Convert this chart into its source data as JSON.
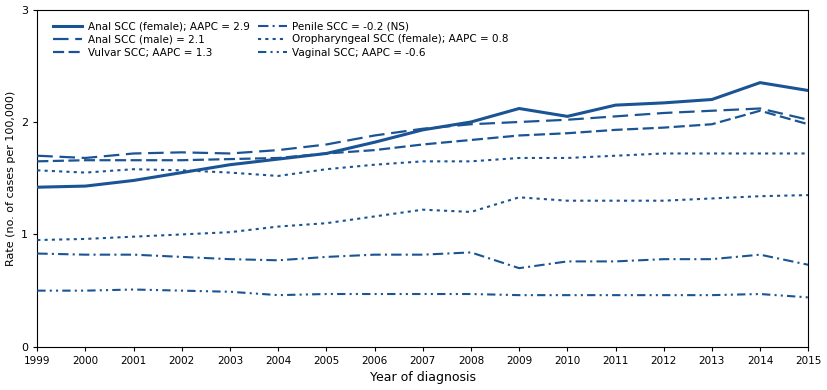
{
  "years": [
    1999,
    2000,
    2001,
    2002,
    2003,
    2004,
    2005,
    2006,
    2007,
    2008,
    2009,
    2010,
    2011,
    2012,
    2013,
    2014,
    2015
  ],
  "anal_scc_female": [
    1.42,
    1.43,
    1.48,
    1.55,
    1.62,
    1.67,
    1.72,
    1.82,
    1.93,
    2.0,
    2.12,
    2.05,
    2.15,
    2.17,
    2.2,
    2.35,
    2.28
  ],
  "anal_scc_male_dashed": [
    1.7,
    1.68,
    1.72,
    1.73,
    1.72,
    1.75,
    1.8,
    1.88,
    1.94,
    1.98,
    2.0,
    2.02,
    2.05,
    2.08,
    2.1,
    2.12,
    2.02
  ],
  "vulvar_scc": [
    1.65,
    1.66,
    1.66,
    1.66,
    1.67,
    1.68,
    1.72,
    1.75,
    1.8,
    1.84,
    1.88,
    1.9,
    1.93,
    1.95,
    1.98,
    2.1,
    1.98
  ],
  "oropharyngeal_scc_female": [
    1.57,
    1.55,
    1.58,
    1.57,
    1.55,
    1.52,
    1.58,
    1.62,
    1.65,
    1.65,
    1.68,
    1.68,
    1.7,
    1.72,
    1.72,
    1.72,
    1.72
  ],
  "anal_scc_male_dotted": [
    0.95,
    0.96,
    0.98,
    1.0,
    1.02,
    1.07,
    1.1,
    1.16,
    1.22,
    1.2,
    1.33,
    1.3,
    1.3,
    1.3,
    1.32,
    1.34,
    1.35
  ],
  "penile_scc": [
    0.83,
    0.82,
    0.82,
    0.8,
    0.78,
    0.77,
    0.8,
    0.82,
    0.82,
    0.84,
    0.7,
    0.76,
    0.76,
    0.78,
    0.78,
    0.82,
    0.73
  ],
  "vaginal_scc": [
    0.5,
    0.5,
    0.51,
    0.5,
    0.49,
    0.46,
    0.47,
    0.47,
    0.47,
    0.47,
    0.46,
    0.46,
    0.46,
    0.46,
    0.46,
    0.47,
    0.44
  ],
  "color": "#1a5494",
  "xlabel": "Year of diagnosis",
  "ylabel": "Rate (no. of cases per 100,000)",
  "ylim": [
    0,
    3
  ],
  "yticks": [
    0,
    1,
    2,
    3
  ],
  "legend_col1": [
    "Anal SCC (female); AAPC = 2.9",
    "Vulvar SCC; AAPC = 1.3",
    "Oropharyngeal SCC (female); AAPC = 0.8"
  ],
  "legend_col2": [
    "Anal SCC (male) = 2.1",
    "Penile SCC = -0.2 (NS)",
    "Vaginal SCC; AAPC = -0.6"
  ]
}
